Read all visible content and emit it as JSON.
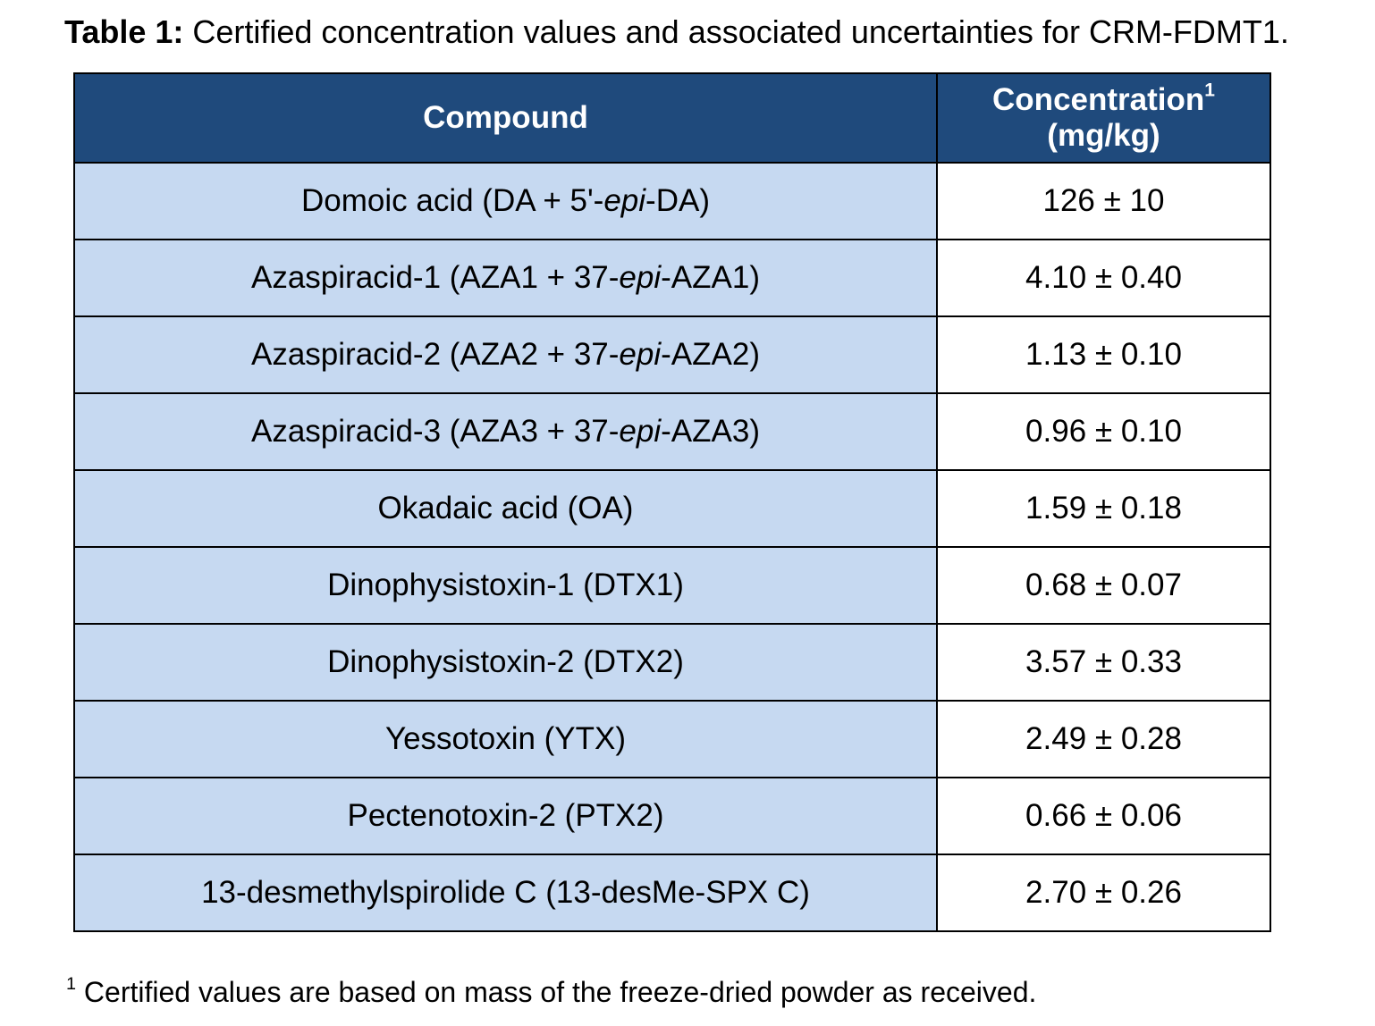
{
  "caption": {
    "label": "Table 1:",
    "text": " Certified concentration values and associated uncertainties for CRM-FDMT1."
  },
  "table": {
    "header": {
      "compound": "Compound",
      "concentration": "Concentration",
      "concentration_sup": "1",
      "concentration_unit": "(mg/kg)"
    },
    "rows": [
      {
        "compound": [
          "Domoic acid (DA + 5'-",
          "epi",
          "-DA)"
        ],
        "value": "126 ± 10"
      },
      {
        "compound": [
          "Azaspiracid-1 (AZA1 + 37-",
          "epi",
          "-AZA1)"
        ],
        "value": "4.10 ± 0.40"
      },
      {
        "compound": [
          "Azaspiracid-2 (AZA2 + 37-",
          "epi",
          "-AZA2)"
        ],
        "value": "1.13 ± 0.10"
      },
      {
        "compound": [
          "Azaspiracid-3 (AZA3 + 37-",
          "epi",
          "-AZA3)"
        ],
        "value": "0.96 ± 0.10"
      },
      {
        "compound": [
          "Okadaic acid (OA)"
        ],
        "value": "1.59 ± 0.18"
      },
      {
        "compound": [
          "Dinophysistoxin-1 (DTX1)"
        ],
        "value": "0.68 ± 0.07"
      },
      {
        "compound": [
          "Dinophysistoxin-2 (DTX2)"
        ],
        "value": "3.57 ± 0.33"
      },
      {
        "compound": [
          "Yessotoxin (YTX)"
        ],
        "value": "2.49 ± 0.28"
      },
      {
        "compound": [
          "Pectenotoxin-2 (PTX2)"
        ],
        "value": "0.66 ± 0.06"
      },
      {
        "compound": [
          "13-desmethylspirolide C (13-desMe-SPX C)"
        ],
        "value": "2.70 ± 0.26"
      }
    ]
  },
  "footnote": {
    "marker": "1",
    "text": " Certified values are based on mass of the freeze-dried powder as received."
  },
  "colors": {
    "header_background": "#1f4a7c",
    "compound_cell_background": "#c6d9f1",
    "value_cell_background": "#ffffff"
  }
}
